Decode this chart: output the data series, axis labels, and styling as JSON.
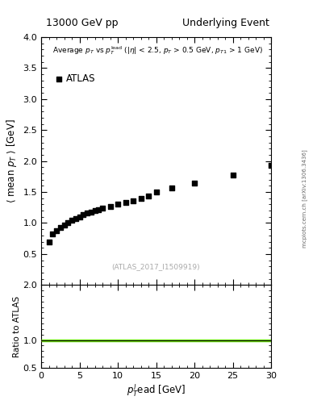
{
  "title_left": "13000 GeV pp",
  "title_right": "Underlying Event",
  "legend_label": "ATLAS",
  "watermark": "(ATLAS_2017_I1509919)",
  "side_label": "mcplots.cern.ch [arXiv:1306.3436]",
  "ylabel_main": "⟨ mean pᵀ ⟩ [GeV]",
  "ylabel_ratio": "Ratio to ATLAS",
  "xlim": [
    0,
    30
  ],
  "ylim_main": [
    0,
    4
  ],
  "ylim_ratio": [
    0.5,
    2
  ],
  "xticks": [
    0,
    5,
    10,
    15,
    20,
    25,
    30
  ],
  "yticks_main": [
    0.5,
    1.0,
    1.5,
    2.0,
    2.5,
    3.0,
    3.5,
    4.0
  ],
  "yticks_ratio": [
    0.5,
    1.0,
    2.0
  ],
  "data_x": [
    1.0,
    1.5,
    2.0,
    2.5,
    3.0,
    3.5,
    4.0,
    4.5,
    5.0,
    5.5,
    6.0,
    6.5,
    7.0,
    7.5,
    8.0,
    9.0,
    10.0,
    11.0,
    12.0,
    13.0,
    14.0,
    15.0,
    17.0,
    20.0,
    25.0,
    30.0
  ],
  "data_y": [
    0.7,
    0.82,
    0.88,
    0.93,
    0.97,
    1.0,
    1.05,
    1.07,
    1.1,
    1.13,
    1.16,
    1.18,
    1.2,
    1.22,
    1.24,
    1.27,
    1.3,
    1.33,
    1.36,
    1.4,
    1.44,
    1.5,
    1.57,
    1.65,
    1.77,
    1.93
  ],
  "marker_color": "#000000",
  "marker_size": 5,
  "ratio_line_color": "#000000",
  "ratio_band_color_green": "#00cc00",
  "ratio_band_color_yellow": "#ccff00",
  "background_color": "#ffffff"
}
